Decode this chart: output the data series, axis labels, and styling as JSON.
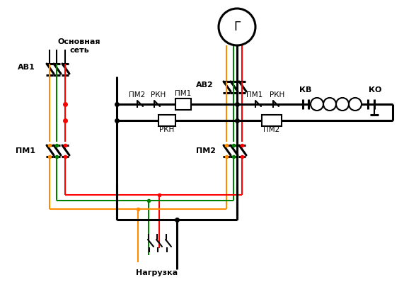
{
  "bg_color": "#ffffff",
  "line_colors": {
    "black": "#000000",
    "red": "#ff0000",
    "green": "#008000",
    "orange": "#ff8c00"
  },
  "labels": {
    "osnov_set": "Основная\nсеть",
    "av1": "АВ1",
    "av2": "АВ2",
    "pm1_left": "ПМ1",
    "pm2_right": "ПМ2",
    "pm1_ctrl_label": "ПМ1",
    "pm2_ctrl_label": "ПМ2",
    "rkn_top": "РКН",
    "rkn_bot": "РКН",
    "pm1_right_ctrl": "ПМ1",
    "rkn_right": "РКН",
    "kv": "КВ",
    "ko": "КО",
    "nagruzka": "Нагрузка",
    "G": "Г"
  },
  "figsize": [
    5.71,
    4.05
  ],
  "dpi": 100
}
